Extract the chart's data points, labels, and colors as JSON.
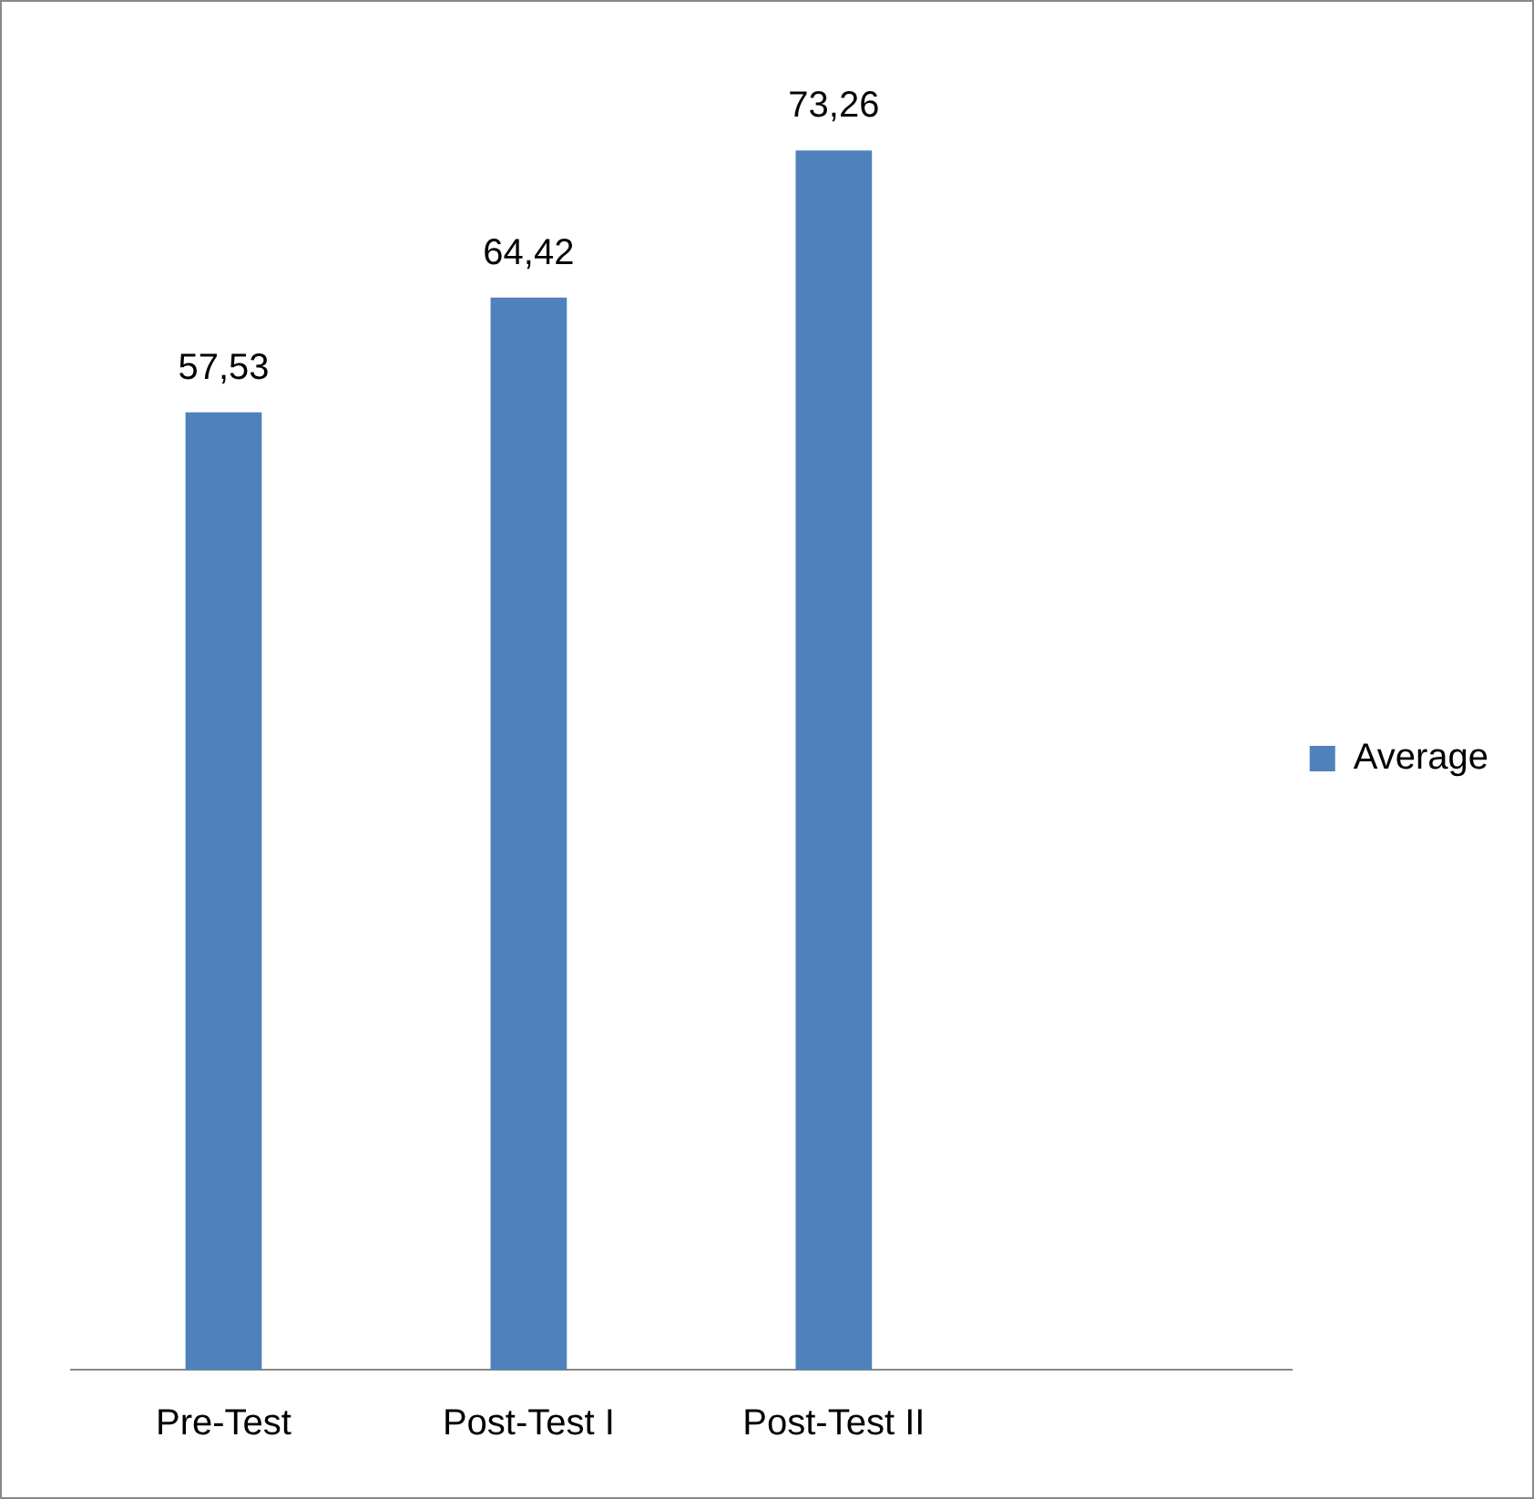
{
  "chart_data": {
    "type": "bar",
    "categories": [
      "Pre-Test",
      "Post-Test I",
      "Post-Test II",
      null
    ],
    "series": [
      {
        "name": "Average",
        "color": "#4f81bd",
        "values": [
          57.53,
          64.42,
          73.26,
          null
        ],
        "value_labels": [
          "57,53",
          "64,42",
          "73,26",
          null
        ]
      }
    ],
    "relative": false,
    "legend": "right",
    "grid": false
  }
}
